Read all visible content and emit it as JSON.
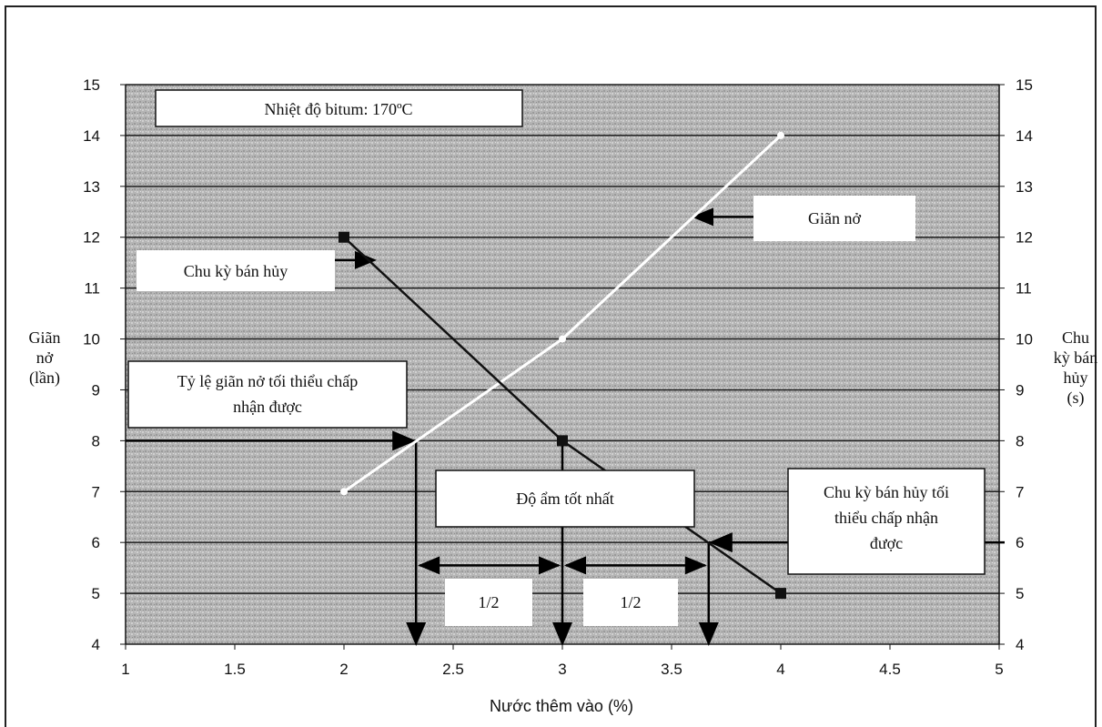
{
  "colors": {
    "plot_bg": "#b9b9b9",
    "grid": "#1e1e1e",
    "expansion_line": "#ffffff",
    "half_life_line": "#111111"
  },
  "chart_data": {
    "type": "line",
    "xlabel": "Nước thêm vào (%)",
    "ylabel_left": [
      "Giãn",
      "nở",
      "(lần)"
    ],
    "ylabel_right": [
      "Chu",
      "kỳ bán",
      "hủy",
      "(s)"
    ],
    "xlim": [
      1,
      5
    ],
    "ylim": [
      4,
      15
    ],
    "x_ticks": [
      "1",
      "1.5",
      "2",
      "2.5",
      "3",
      "3.5",
      "4",
      "4.5",
      "5"
    ],
    "y_ticks_left": [
      "4",
      "5",
      "6",
      "7",
      "8",
      "9",
      "10",
      "11",
      "12",
      "13",
      "14",
      "15"
    ],
    "y_ticks_right": [
      "4",
      "5",
      "6",
      "7",
      "8",
      "9",
      "10",
      "11",
      "12",
      "13",
      "14",
      "15"
    ],
    "grid": true,
    "series": [
      {
        "name": "Giãn nở",
        "marker": "circle",
        "points": [
          [
            2,
            7
          ],
          [
            3,
            10
          ],
          [
            4,
            14
          ]
        ]
      },
      {
        "name": "Chu kỳ bán hủy",
        "marker": "square",
        "points": [
          [
            2,
            12
          ],
          [
            3,
            8
          ],
          [
            4,
            5
          ]
        ]
      }
    ],
    "annotations": {
      "temperature": "Nhiệt độ bitum: 170ºC",
      "expansion_label": "Giãn nở",
      "half_life_label": "Chu kỳ bán hủy",
      "min_expansion": [
        "Tỷ lệ giãn nở tối thiểu chấp",
        "nhận được"
      ],
      "min_half_life": [
        "Chu kỳ bán hủy tối",
        "thiểu chấp nhận",
        "được"
      ],
      "optimum": "Độ ẩm tốt nhất",
      "half_left": "1/2",
      "half_right": "1/2"
    },
    "reference": {
      "min_expansion_value": 8,
      "min_half_life_value": 6,
      "x_min_expansion": 2.33,
      "x_optimum": 3,
      "x_min_half_life": 3.67
    }
  }
}
